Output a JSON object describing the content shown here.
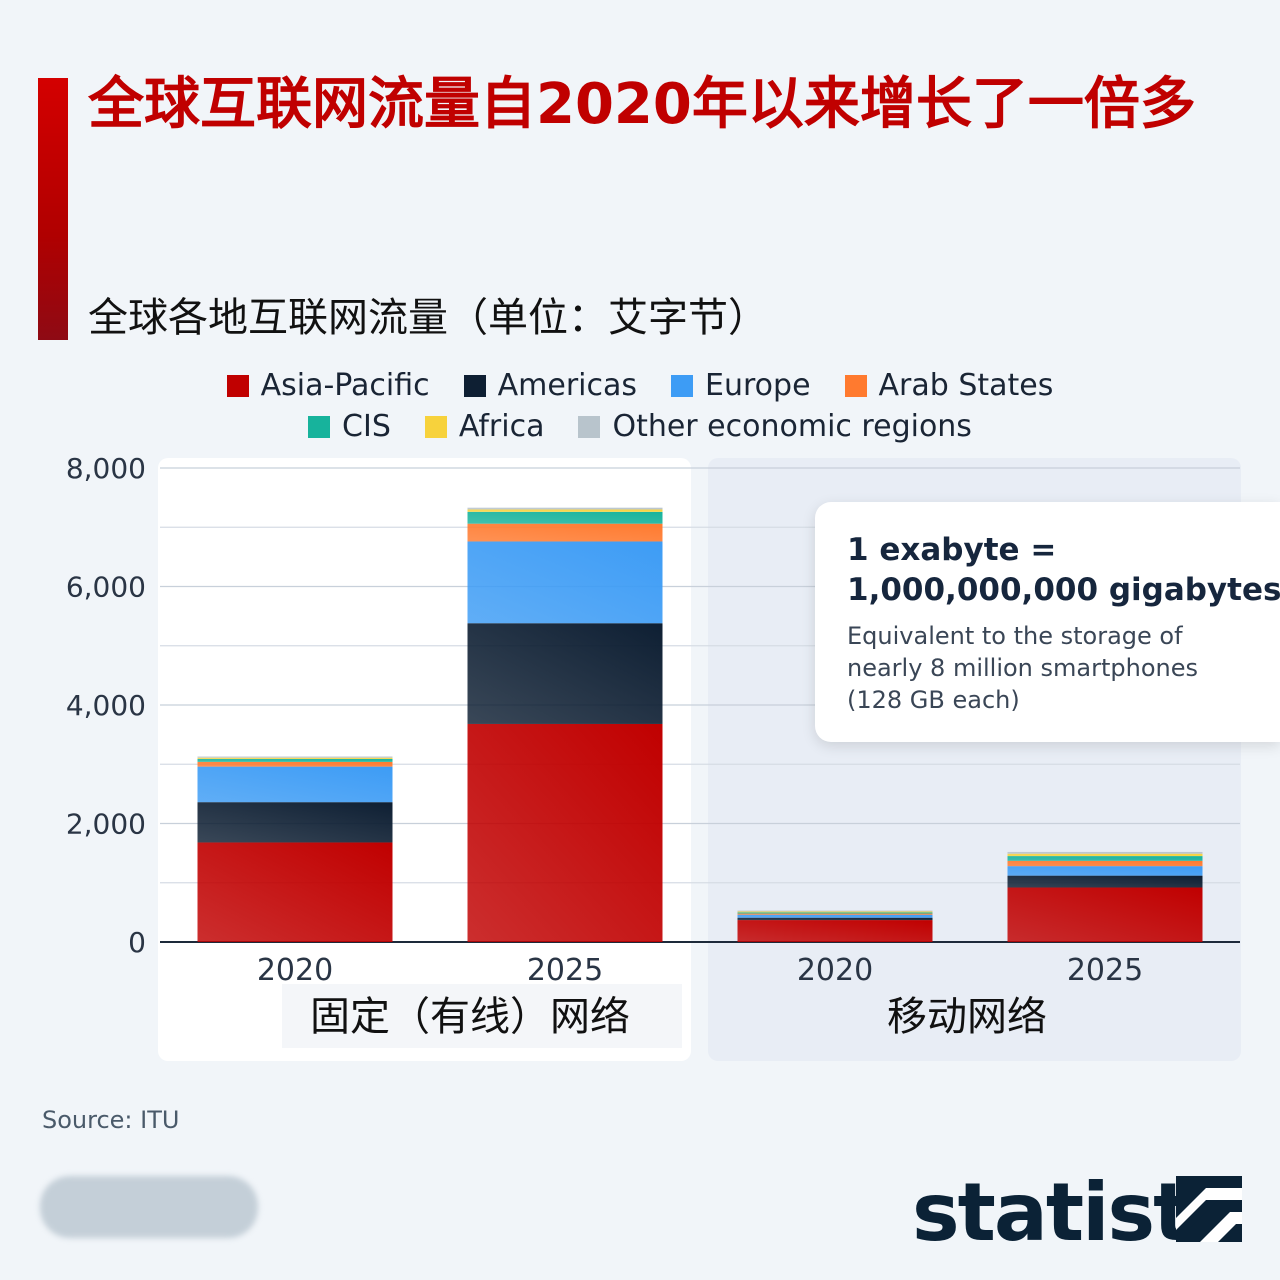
{
  "header": {
    "title": "全球互联网流量自2020年以来增长了一倍多",
    "subtitle": "全球各地互联网流量（单位：艾字节）"
  },
  "legend": [
    {
      "label": "Asia-Pacific",
      "color": "#c00000"
    },
    {
      "label": "Americas",
      "color": "#0e1f33"
    },
    {
      "label": "Europe",
      "color": "#3d9cf5"
    },
    {
      "label": "Arab States",
      "color": "#ff7a2f"
    },
    {
      "label": "CIS",
      "color": "#17b39c"
    },
    {
      "label": "Africa",
      "color": "#f7d23c"
    },
    {
      "label": "Other economic regions",
      "color": "#b8c4cc"
    }
  ],
  "callout": {
    "line1": "1 exabyte =",
    "line2": "1,000,000,000 gigabytes",
    "line3": "Equivalent to the storage of",
    "line4": "nearly 8 million smartphones",
    "line5": "(128 GB each)"
  },
  "source": "Source: ITU",
  "brand": "statista",
  "chart_data": {
    "type": "bar",
    "stacked": true,
    "groups": [
      "固定（有线）网络",
      "移动网络"
    ],
    "categories": [
      "2020",
      "2025",
      "2020",
      "2025"
    ],
    "category_group": [
      0,
      0,
      1,
      1
    ],
    "ylim": [
      0,
      8000
    ],
    "yticks": [
      0,
      2000,
      4000,
      6000,
      8000
    ],
    "ytick_labels": [
      "0",
      "2,000",
      "4,000",
      "6,000",
      "8,000"
    ],
    "grid": true,
    "legend_position": "top",
    "series": [
      {
        "name": "Asia-Pacific",
        "color": "#c00000",
        "values": [
          1680,
          3680,
          370,
          920
        ]
      },
      {
        "name": "Americas",
        "color": "#0e1f33",
        "values": [
          680,
          1700,
          40,
          200
        ]
      },
      {
        "name": "Europe",
        "color": "#3d9cf5",
        "values": [
          600,
          1380,
          50,
          160
        ]
      },
      {
        "name": "Arab States",
        "color": "#ff7a2f",
        "values": [
          80,
          300,
          20,
          90
        ]
      },
      {
        "name": "CIS",
        "color": "#17b39c",
        "values": [
          50,
          200,
          20,
          80
        ]
      },
      {
        "name": "Africa",
        "color": "#f7d23c",
        "values": [
          20,
          40,
          15,
          40
        ]
      },
      {
        "name": "Other economic regions",
        "color": "#b8c4cc",
        "values": [
          20,
          30,
          15,
          30
        ]
      }
    ]
  }
}
